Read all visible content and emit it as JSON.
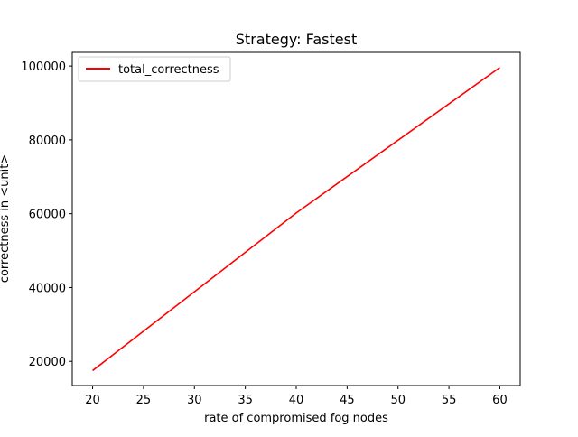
{
  "chart_data": {
    "type": "line",
    "title": "Strategy: Fastest",
    "xlabel": "rate of compromised fog nodes",
    "ylabel": "correctness in <unit>",
    "xlim": [
      18,
      62
    ],
    "ylim": [
      13450,
      103700
    ],
    "x_ticks": [
      20,
      25,
      30,
      35,
      40,
      45,
      50,
      55,
      60
    ],
    "y_ticks": [
      20000,
      40000,
      60000,
      80000,
      100000
    ],
    "grid": false,
    "legend_position": "upper-left",
    "series": [
      {
        "name": "total_correctness",
        "color": "#ff0000",
        "x": [
          20,
          40,
          60
        ],
        "y": [
          17500,
          60200,
          99600
        ]
      }
    ]
  }
}
